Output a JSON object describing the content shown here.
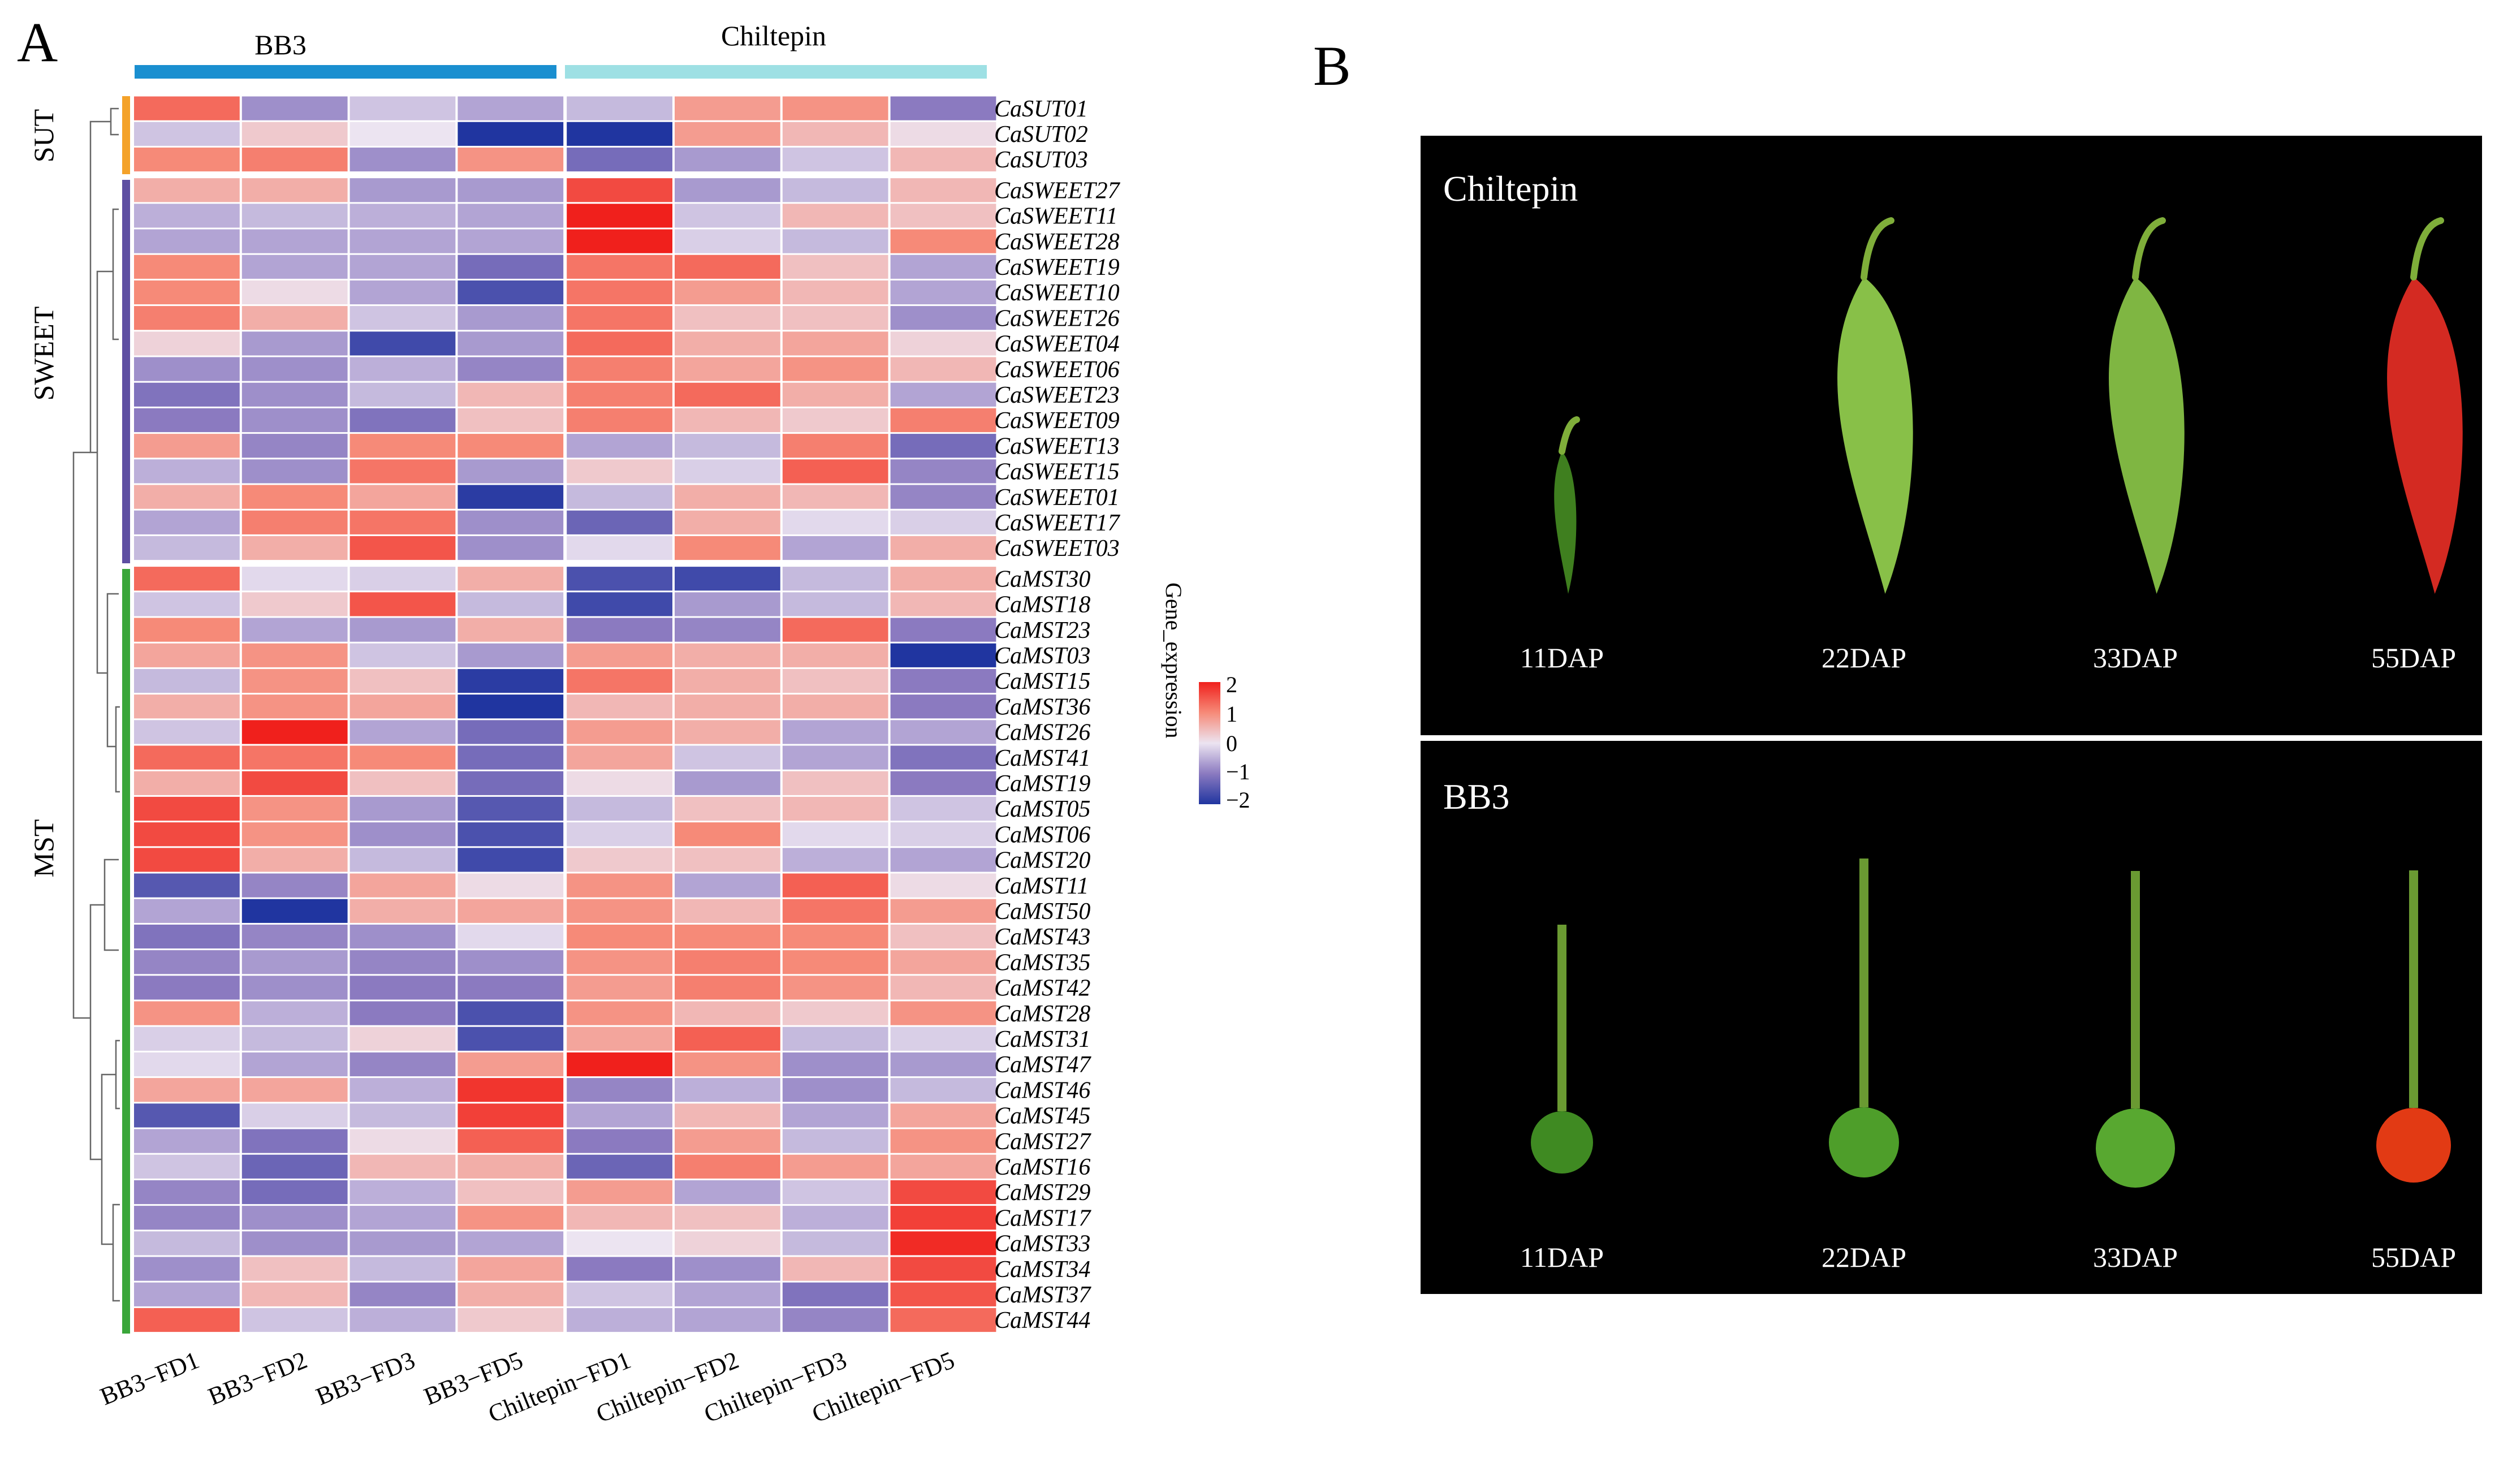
{
  "panel_labels": {
    "a": "A",
    "b": "B"
  },
  "chart_data": {
    "type": "heatmap",
    "title": "",
    "legend_title": "Gene_expression",
    "color_scale": {
      "min": -2,
      "max": 2,
      "ticks": [
        "2",
        "1",
        "0",
        "−1",
        "−2"
      ],
      "colors": {
        "low": "#2035a0",
        "mid": "#ece4f1",
        "high": "#f0201c",
        "mid_low": "#8b7ac0",
        "mid_high": "#f68a78"
      }
    },
    "column_groups": [
      {
        "name": "BB3",
        "color": "#1a8fd0",
        "columns": 4
      },
      {
        "name": "Chiltepin",
        "color": "#9ee0e4",
        "columns": 4
      }
    ],
    "columns": [
      "BB3−FD1",
      "BB3−FD2",
      "BB3−FD3",
      "BB3−FD5",
      "Chiltepin−FD1",
      "Chiltepin−FD2",
      "Chiltepin−FD3",
      "Chiltepin−FD5"
    ],
    "row_groups": [
      {
        "name": "SUT",
        "color": "#f4a22a",
        "count": 3
      },
      {
        "name": "SWEET",
        "color": "#5e4fa2",
        "count": 15
      },
      {
        "name": "MST",
        "color": "#3aa63a",
        "count": 30
      }
    ],
    "rows": [
      "CaSUT01",
      "CaSUT02",
      "CaSUT03",
      "CaSWEET27",
      "CaSWEET11",
      "CaSWEET28",
      "CaSWEET19",
      "CaSWEET10",
      "CaSWEET26",
      "CaSWEET04",
      "CaSWEET06",
      "CaSWEET23",
      "CaSWEET09",
      "CaSWEET13",
      "CaSWEET15",
      "CaSWEET01",
      "CaSWEET17",
      "CaSWEET03",
      "CaMST30",
      "CaMST18",
      "CaMST23",
      "CaMST03",
      "CaMST15",
      "CaMST36",
      "CaMST26",
      "CaMST41",
      "CaMST19",
      "CaMST05",
      "CaMST06",
      "CaMST20",
      "CaMST11",
      "CaMST50",
      "CaMST43",
      "CaMST35",
      "CaMST42",
      "CaMST28",
      "CaMST31",
      "CaMST47",
      "CaMST46",
      "CaMST45",
      "CaMST27",
      "CaMST16",
      "CaMST29",
      "CaMST17",
      "CaMST33",
      "CaMST34",
      "CaMST37",
      "CaMST44"
    ],
    "values": [
      [
        1.3,
        -0.8,
        -0.3,
        -0.6,
        -0.4,
        0.8,
        0.9,
        -1.0
      ],
      [
        -0.3,
        0.3,
        0.0,
        -2.0,
        -2.0,
        0.8,
        0.5,
        0.1
      ],
      [
        1.0,
        1.1,
        -0.8,
        0.9,
        -1.2,
        -0.7,
        -0.3,
        0.5
      ],
      [
        0.6,
        0.6,
        -0.7,
        -0.7,
        1.6,
        -0.7,
        -0.4,
        0.5
      ],
      [
        -0.5,
        -0.4,
        -0.5,
        -0.6,
        2.0,
        -0.3,
        0.5,
        0.4
      ],
      [
        -0.6,
        -0.6,
        -0.6,
        -0.6,
        2.0,
        -0.2,
        -0.4,
        1.0
      ],
      [
        1.0,
        -0.6,
        -0.6,
        -1.2,
        1.2,
        1.3,
        0.4,
        -0.6
      ],
      [
        1.0,
        0.1,
        -0.6,
        -1.6,
        1.2,
        0.8,
        0.5,
        -0.6
      ],
      [
        1.1,
        0.6,
        -0.3,
        -0.7,
        1.2,
        0.4,
        0.4,
        -0.8
      ],
      [
        0.2,
        -0.7,
        -1.7,
        -0.7,
        1.3,
        0.6,
        0.7,
        0.2
      ],
      [
        -0.8,
        -0.8,
        -0.5,
        -0.9,
        1.1,
        0.7,
        0.9,
        0.5
      ],
      [
        -1.1,
        -0.8,
        -0.4,
        0.5,
        1.1,
        1.3,
        0.6,
        -0.6
      ],
      [
        -1.0,
        -0.8,
        -1.1,
        0.4,
        1.1,
        0.5,
        0.3,
        1.1
      ],
      [
        0.8,
        -0.9,
        1.0,
        1.0,
        -0.6,
        -0.4,
        1.1,
        -1.2
      ],
      [
        -0.5,
        -0.8,
        1.2,
        -0.7,
        0.3,
        -0.2,
        1.4,
        -0.9
      ],
      [
        0.6,
        1.0,
        0.7,
        -1.9,
        -0.4,
        0.6,
        0.5,
        -0.9
      ],
      [
        -0.6,
        1.1,
        1.2,
        -0.8,
        -1.3,
        0.6,
        -0.1,
        -0.2
      ],
      [
        -0.4,
        0.6,
        1.5,
        -0.8,
        -0.1,
        1.0,
        -0.6,
        0.6
      ],
      [
        1.3,
        -0.1,
        -0.2,
        0.6,
        -1.6,
        -1.7,
        -0.4,
        0.6
      ],
      [
        -0.3,
        0.3,
        1.5,
        -0.4,
        -1.7,
        -0.7,
        -0.4,
        0.5
      ],
      [
        1.0,
        -0.6,
        -0.7,
        0.6,
        -1.0,
        -0.9,
        1.3,
        -1.0
      ],
      [
        0.7,
        0.9,
        -0.3,
        -0.7,
        0.8,
        0.6,
        0.6,
        -2.0
      ],
      [
        -0.4,
        0.9,
        0.4,
        -1.9,
        1.2,
        0.6,
        0.4,
        -1.0
      ],
      [
        0.6,
        0.9,
        0.7,
        -2.0,
        0.5,
        0.6,
        0.6,
        -1.0
      ],
      [
        -0.3,
        2.0,
        -0.6,
        -1.2,
        0.8,
        0.6,
        -0.6,
        -0.6
      ],
      [
        1.3,
        1.2,
        1.0,
        -1.2,
        0.7,
        -0.3,
        -0.6,
        -1.1
      ],
      [
        0.6,
        1.6,
        0.4,
        -1.2,
        0.1,
        -0.7,
        0.4,
        -1.0
      ],
      [
        1.6,
        0.9,
        -0.7,
        -1.5,
        -0.4,
        0.4,
        0.5,
        -0.3
      ],
      [
        1.6,
        0.9,
        -0.8,
        -1.6,
        -0.2,
        1.0,
        -0.1,
        -0.2
      ],
      [
        1.6,
        0.6,
        -0.4,
        -1.7,
        0.3,
        0.4,
        -0.5,
        -0.6
      ],
      [
        -1.5,
        -0.9,
        0.7,
        0.1,
        0.9,
        -0.6,
        1.4,
        0.1
      ],
      [
        -0.6,
        -2.0,
        0.6,
        0.7,
        0.9,
        0.5,
        1.2,
        0.8
      ],
      [
        -1.1,
        -0.9,
        -0.8,
        -0.1,
        1.0,
        1.0,
        1.0,
        0.4
      ],
      [
        -0.9,
        -0.7,
        -0.9,
        -0.8,
        0.9,
        1.1,
        1.0,
        0.7
      ],
      [
        -1.0,
        -0.8,
        -1.0,
        -1.0,
        0.8,
        1.1,
        0.9,
        0.5
      ],
      [
        0.9,
        -0.5,
        -1.0,
        -1.6,
        0.9,
        0.5,
        0.3,
        0.9
      ],
      [
        -0.2,
        -0.4,
        0.2,
        -1.6,
        0.7,
        1.4,
        -0.4,
        -0.2
      ],
      [
        -0.1,
        -0.6,
        -0.9,
        0.8,
        2.0,
        0.9,
        -0.8,
        -0.7
      ],
      [
        0.7,
        0.7,
        -0.5,
        1.8,
        -0.9,
        -0.5,
        -0.8,
        -0.4
      ],
      [
        -1.5,
        -0.2,
        -0.4,
        1.7,
        -0.6,
        0.5,
        -0.6,
        0.7
      ],
      [
        -0.6,
        -1.1,
        0.1,
        1.4,
        -1.0,
        0.8,
        -0.4,
        0.9
      ],
      [
        -0.3,
        -1.3,
        0.5,
        0.6,
        -1.3,
        1.1,
        0.8,
        0.7
      ],
      [
        -0.9,
        -1.2,
        -0.5,
        0.4,
        0.8,
        -0.6,
        -0.3,
        1.6
      ],
      [
        -0.9,
        -0.8,
        -0.6,
        0.9,
        0.5,
        0.4,
        -0.5,
        1.7
      ],
      [
        -0.4,
        -0.8,
        -0.7,
        -0.6,
        0.0,
        0.2,
        -0.4,
        1.9
      ],
      [
        -0.8,
        0.4,
        -0.4,
        0.7,
        -1.0,
        -0.8,
        0.5,
        1.6
      ],
      [
        -0.6,
        0.5,
        -0.9,
        0.6,
        -0.3,
        -0.6,
        -1.1,
        1.5
      ],
      [
        1.4,
        -0.3,
        -0.5,
        0.3,
        -0.5,
        -0.6,
        -0.9,
        1.3
      ]
    ]
  },
  "photo_panels": [
    {
      "title": "Chiltepin",
      "stages": [
        "11DAP",
        "22DAP",
        "33DAP",
        "55DAP"
      ],
      "fruit_shape": "elongated",
      "fruit_colors": [
        "#3f7f1f",
        "#88c048",
        "#7fb642",
        "#d42a22"
      ]
    },
    {
      "title": "BB3",
      "stages": [
        "11DAP",
        "22DAP",
        "33DAP",
        "55DAP"
      ],
      "fruit_shape": "round",
      "fruit_colors": [
        "#3f8a22",
        "#4e9e2a",
        "#58a830",
        "#e23a14"
      ]
    }
  ]
}
